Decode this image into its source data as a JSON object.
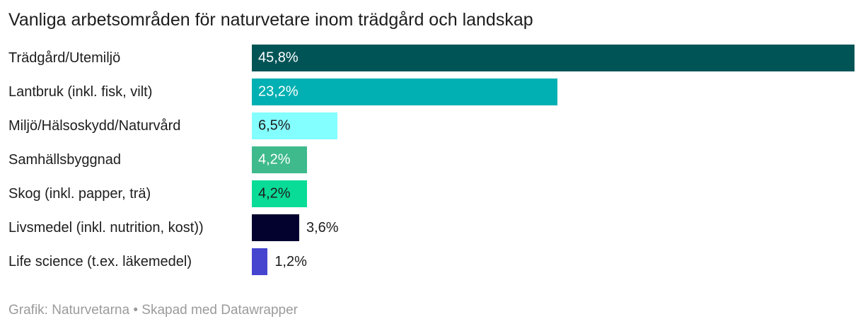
{
  "title": "Vanliga arbetsområden för naturvetare inom trädgård och landskap",
  "footer": "Grafik: Naturvetarna • Skapad med Datawrapper",
  "colors": {
    "background": "#ffffff",
    "text": "#1d1d1d",
    "footer_text": "#9b9b9b"
  },
  "chart_data": {
    "type": "bar",
    "orientation": "horizontal",
    "title": "Vanliga arbetsområden för naturvetare inom trädgård och landskap",
    "xlabel": "",
    "ylabel": "",
    "xlim": [
      0,
      45.8
    ],
    "xmax": 45.8,
    "grid": false,
    "legend": false,
    "value_suffix": "%",
    "decimal_separator": ",",
    "categories": [
      "Trädgård/Utemiljö",
      "Lantbruk (inkl. fisk, vilt)",
      "Miljö/Hälsoskydd/Naturvård",
      "Samhällsbyggnad",
      "Skog (inkl. papper, trä)",
      "Livsmedel (inkl. nutrition, kost))",
      "Life science (t.ex. läkemedel)"
    ],
    "values": [
      45.8,
      23.2,
      6.5,
      4.2,
      4.2,
      3.6,
      1.2
    ],
    "rows": [
      {
        "category": "Trädgård/Utemiljö",
        "value": 45.8,
        "display": "45,8%",
        "color": "#005456",
        "value_label_position": "inside",
        "value_label_color": "#ffffff"
      },
      {
        "category": "Lantbruk (inkl. fisk, vilt)",
        "value": 23.2,
        "display": "23,2%",
        "color": "#00b0b2",
        "value_label_position": "inside",
        "value_label_color": "#ffffff"
      },
      {
        "category": "Miljö/Hälsoskydd/Naturvård",
        "value": 6.5,
        "display": "6,5%",
        "color": "#84ffff",
        "value_label_position": "inside",
        "value_label_color": "#1d1d1d"
      },
      {
        "category": "Samhällsbyggnad",
        "value": 4.2,
        "display": "4,2%",
        "color": "#3eba8c",
        "value_label_position": "inside",
        "value_label_color": "#ffffff"
      },
      {
        "category": "Skog (inkl. papper, trä)",
        "value": 4.2,
        "display": "4,2%",
        "color": "#09dc97",
        "value_label_position": "inside",
        "value_label_color": "#1d1d1d"
      },
      {
        "category": "Livsmedel (inkl. nutrition, kost))",
        "value": 3.6,
        "display": "3,6%",
        "color": "#03022f",
        "value_label_position": "outside",
        "value_label_color": "#1d1d1d"
      },
      {
        "category": "Life science (t.ex. läkemedel)",
        "value": 1.2,
        "display": "1,2%",
        "color": "#4645cf",
        "value_label_position": "outside",
        "value_label_color": "#1d1d1d"
      }
    ]
  }
}
